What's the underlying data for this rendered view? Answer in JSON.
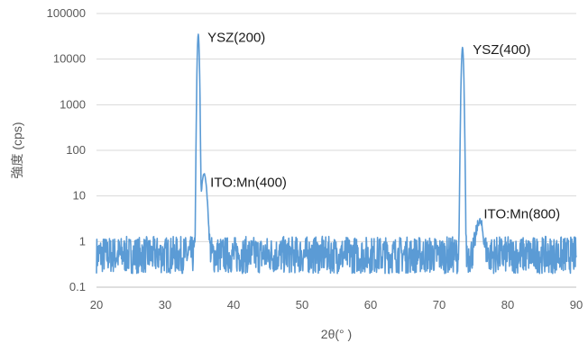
{
  "chart_data": {
    "type": "line",
    "title": "",
    "xlabel": "2θ(° )",
    "ylabel": "強度 (cps)",
    "xlim": [
      20,
      90
    ],
    "ylim": [
      0.1,
      100000
    ],
    "yscale": "log",
    "grid": {
      "x": false,
      "y": true
    },
    "legend": "none",
    "x_ticks": [
      "20",
      "30",
      "40",
      "50",
      "60",
      "70",
      "80",
      "90"
    ],
    "y_ticks": [
      "0.1",
      "1",
      "10",
      "100",
      "1000",
      "10000",
      "100000"
    ],
    "series": [
      {
        "color": "#5b9bd5",
        "baseline_range": [
          0.2,
          1.3
        ],
        "x_step": 0.05,
        "peaks": [
          {
            "x": 34.85,
            "y": 35000
          },
          {
            "x": 35.7,
            "y": 30
          },
          {
            "x": 73.4,
            "y": 18000
          },
          {
            "x": 75.9,
            "y": 2.2
          }
        ]
      }
    ],
    "annotations": [
      {
        "text": "YSZ(200)",
        "x": 36.2,
        "y": 24000
      },
      {
        "text": "ITO:Mn(400)",
        "x": 36.6,
        "y": 16
      },
      {
        "text": "YSZ(400)",
        "x": 74.9,
        "y": 13000
      },
      {
        "text": "ITO:Mn(800)",
        "x": 76.5,
        "y": 3.2
      }
    ]
  }
}
